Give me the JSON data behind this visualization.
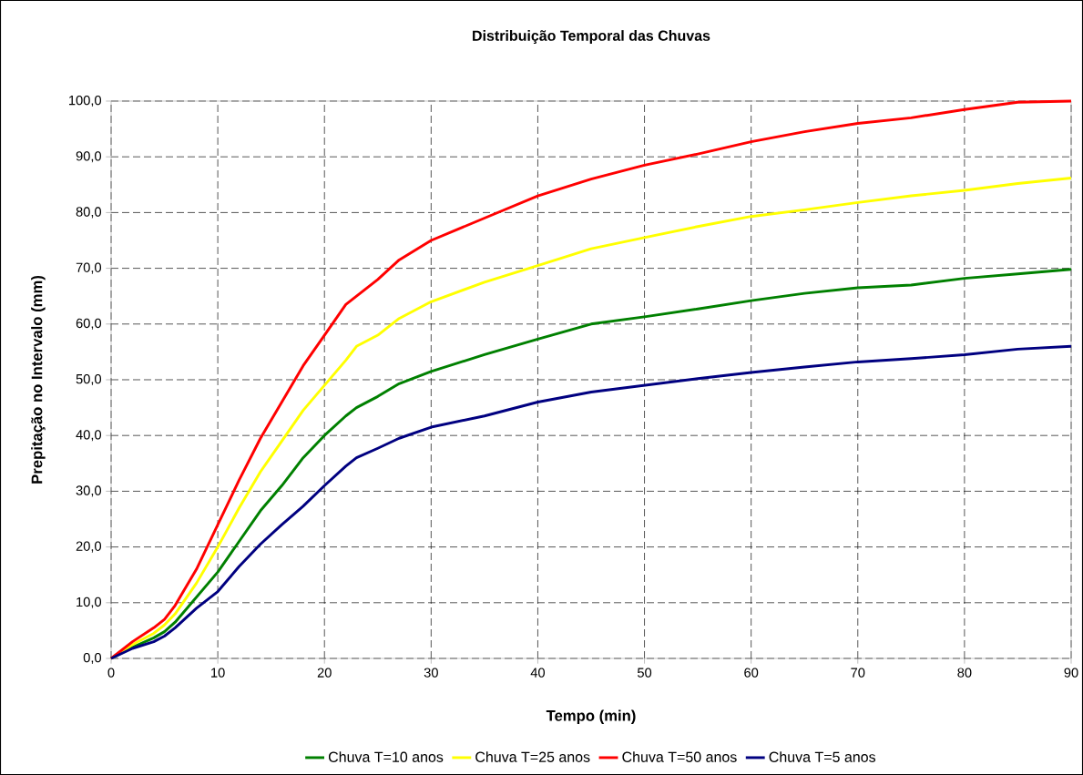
{
  "chart_data": {
    "type": "line",
    "title": "Distribuição Temporal das Chuvas",
    "xlabel": "Tempo (min)",
    "ylabel": "Prepitação no Intervalo (mm)",
    "x": [
      0,
      2,
      4,
      5,
      6,
      8,
      10,
      12,
      14,
      16,
      18,
      20,
      22,
      23,
      25,
      27,
      30,
      35,
      40,
      45,
      50,
      55,
      60,
      65,
      70,
      75,
      80,
      85,
      90
    ],
    "series": [
      {
        "name": "Chuva T=10 anos",
        "color": "#008000",
        "values": [
          0,
          2,
          3.7,
          4.8,
          6.5,
          11,
          15.5,
          21,
          26.5,
          31,
          36,
          40,
          43.5,
          45,
          47,
          49.3,
          51.5,
          54.5,
          57.3,
          60,
          61.3,
          62.7,
          64.2,
          65.5,
          66.5,
          67,
          68.2,
          69,
          69.8
        ]
      },
      {
        "name": "Chuva T=25 anos",
        "color": "#ffff00",
        "values": [
          0,
          2.5,
          4.5,
          6,
          8,
          13.5,
          20,
          27,
          33.5,
          39,
          44.5,
          49,
          53.5,
          56,
          58,
          61,
          64,
          67.5,
          70.5,
          73.5,
          75.5,
          77.5,
          79.3,
          80.5,
          81.8,
          83,
          84,
          85.2,
          86.2
        ]
      },
      {
        "name": "Chuva T=50 anos",
        "color": "#ff0000",
        "values": [
          0,
          3,
          5.5,
          7,
          9.5,
          16,
          24,
          32,
          39.5,
          46,
          52.5,
          58,
          63.5,
          65,
          68,
          71.5,
          75,
          79,
          83,
          86,
          88.5,
          90.5,
          92.7,
          94.5,
          96,
          97,
          98.5,
          99.8,
          100
        ]
      },
      {
        "name": "Chuva T=5 anos",
        "color": "#000080",
        "values": [
          0,
          1.8,
          3,
          4,
          5.5,
          9,
          12,
          16.5,
          20.5,
          24,
          27.3,
          31,
          34.5,
          36,
          37.7,
          39.5,
          41.5,
          43.5,
          46,
          47.8,
          49,
          50.2,
          51.3,
          52.3,
          53.2,
          53.8,
          54.5,
          55.5,
          56
        ]
      }
    ],
    "xlim": [
      0,
      90
    ],
    "ylim": [
      0,
      100
    ],
    "xticks": [
      0,
      10,
      20,
      30,
      40,
      50,
      60,
      70,
      80,
      90
    ],
    "yticks": [
      {
        "value": 0,
        "label": "0,0"
      },
      {
        "value": 10,
        "label": "10,0"
      },
      {
        "value": 20,
        "label": "20,0"
      },
      {
        "value": 30,
        "label": "30,0"
      },
      {
        "value": 40,
        "label": "40,0"
      },
      {
        "value": 50,
        "label": "50,0"
      },
      {
        "value": 60,
        "label": "60,0"
      },
      {
        "value": 70,
        "label": "70,0"
      },
      {
        "value": 80,
        "label": "80,0"
      },
      {
        "value": 90,
        "label": "90,0"
      },
      {
        "value": 100,
        "label": "100,0"
      }
    ],
    "grid": true,
    "legend": "bottom"
  }
}
